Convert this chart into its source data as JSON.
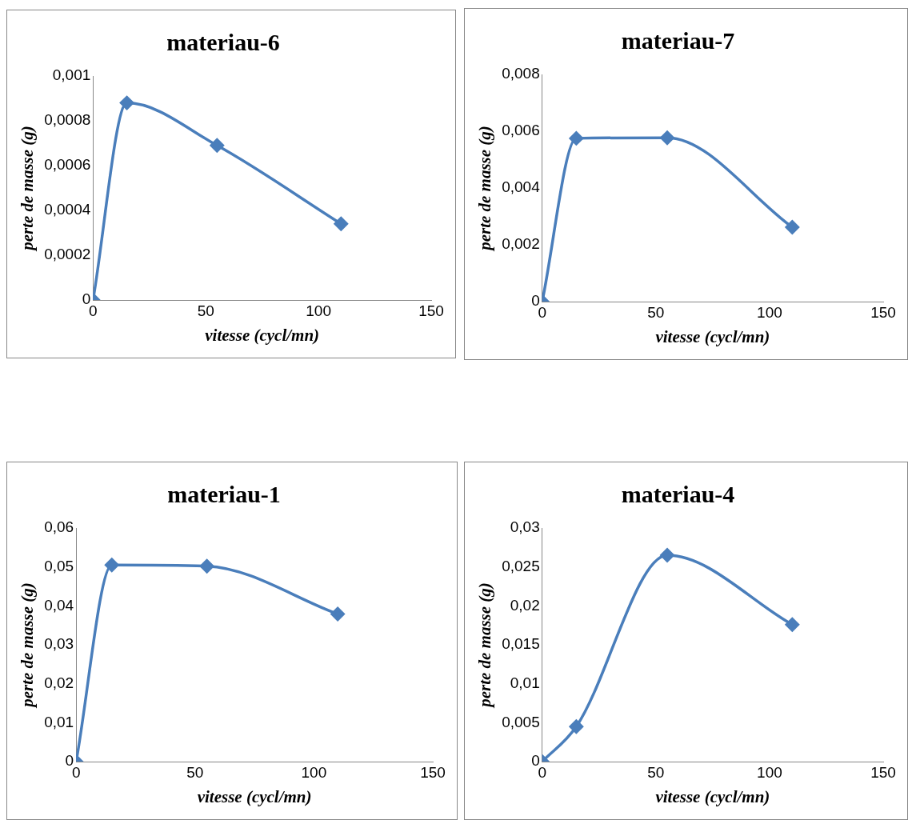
{
  "chart_data": [
    {
      "type": "line",
      "title": "materiau-6",
      "xlabel": "vitesse (cycl/mn)",
      "ylabel": "perte de masse (g)",
      "x": [
        0,
        15,
        55,
        110
      ],
      "series": [
        {
          "color": "#4a7ebb",
          "values": [
            0,
            0.00088,
            0.00069,
            0.00034
          ]
        }
      ],
      "xlim": [
        0,
        150
      ],
      "xticks": [
        0,
        50,
        100,
        150
      ],
      "ylim": [
        0,
        0.001
      ],
      "yticks": [
        {
          "value": 0,
          "label": "0"
        },
        {
          "value": 0.0002,
          "label": "0,0002"
        },
        {
          "value": 0.0004,
          "label": "0,0004"
        },
        {
          "value": 0.0006,
          "label": "0,0006"
        },
        {
          "value": 0.0008,
          "label": "0,0008"
        },
        {
          "value": 0.001,
          "label": "0,001"
        }
      ],
      "marker": "diamond",
      "grid": false,
      "legend": false
    },
    {
      "type": "line",
      "title": "materiau-7",
      "xlabel": "vitesse (cycl/mn)",
      "ylabel": "perte de masse (g)",
      "x": [
        0,
        15,
        55,
        110
      ],
      "series": [
        {
          "color": "#4a7ebb",
          "values": [
            0,
            0.00575,
            0.00577,
            0.00262
          ]
        }
      ],
      "xlim": [
        0,
        150
      ],
      "xticks": [
        0,
        50,
        100,
        150
      ],
      "ylim": [
        0,
        0.008
      ],
      "yticks": [
        {
          "value": 0,
          "label": "0"
        },
        {
          "value": 0.002,
          "label": "0,002"
        },
        {
          "value": 0.004,
          "label": "0,004"
        },
        {
          "value": 0.006,
          "label": "0,006"
        },
        {
          "value": 0.008,
          "label": "0,008"
        }
      ],
      "marker": "diamond",
      "grid": false,
      "legend": false
    },
    {
      "type": "line",
      "title": "materiau-1",
      "xlabel": "vitesse (cycl/mn)",
      "ylabel": "perte de masse (g)",
      "x": [
        0,
        15,
        55,
        110
      ],
      "series": [
        {
          "color": "#4a7ebb",
          "values": [
            0,
            0.0505,
            0.0502,
            0.0379
          ]
        }
      ],
      "xlim": [
        0,
        150
      ],
      "xticks": [
        0,
        50,
        100,
        150
      ],
      "ylim": [
        0,
        0.06
      ],
      "yticks": [
        {
          "value": 0,
          "label": "0"
        },
        {
          "value": 0.01,
          "label": "0,01"
        },
        {
          "value": 0.02,
          "label": "0,02"
        },
        {
          "value": 0.03,
          "label": "0,03"
        },
        {
          "value": 0.04,
          "label": "0,04"
        },
        {
          "value": 0.05,
          "label": "0,05"
        },
        {
          "value": 0.06,
          "label": "0,06"
        }
      ],
      "marker": "diamond",
      "grid": false,
      "legend": false
    },
    {
      "type": "line",
      "title": "materiau-4",
      "xlabel": "vitesse (cycl/mn)",
      "ylabel": "perte de masse (g)",
      "x": [
        0,
        15,
        55,
        110
      ],
      "series": [
        {
          "color": "#4a7ebb",
          "values": [
            0,
            0.0045,
            0.0265,
            0.0176
          ]
        }
      ],
      "xlim": [
        0,
        150
      ],
      "xticks": [
        0,
        50,
        100,
        150
      ],
      "ylim": [
        0,
        0.03
      ],
      "yticks": [
        {
          "value": 0,
          "label": "0"
        },
        {
          "value": 0.005,
          "label": "0,005"
        },
        {
          "value": 0.01,
          "label": "0,01"
        },
        {
          "value": 0.015,
          "label": "0,015"
        },
        {
          "value": 0.02,
          "label": "0,02"
        },
        {
          "value": 0.025,
          "label": "0,025"
        },
        {
          "value": 0.03,
          "label": "0,03"
        }
      ],
      "marker": "diamond",
      "grid": false,
      "legend": false
    }
  ]
}
